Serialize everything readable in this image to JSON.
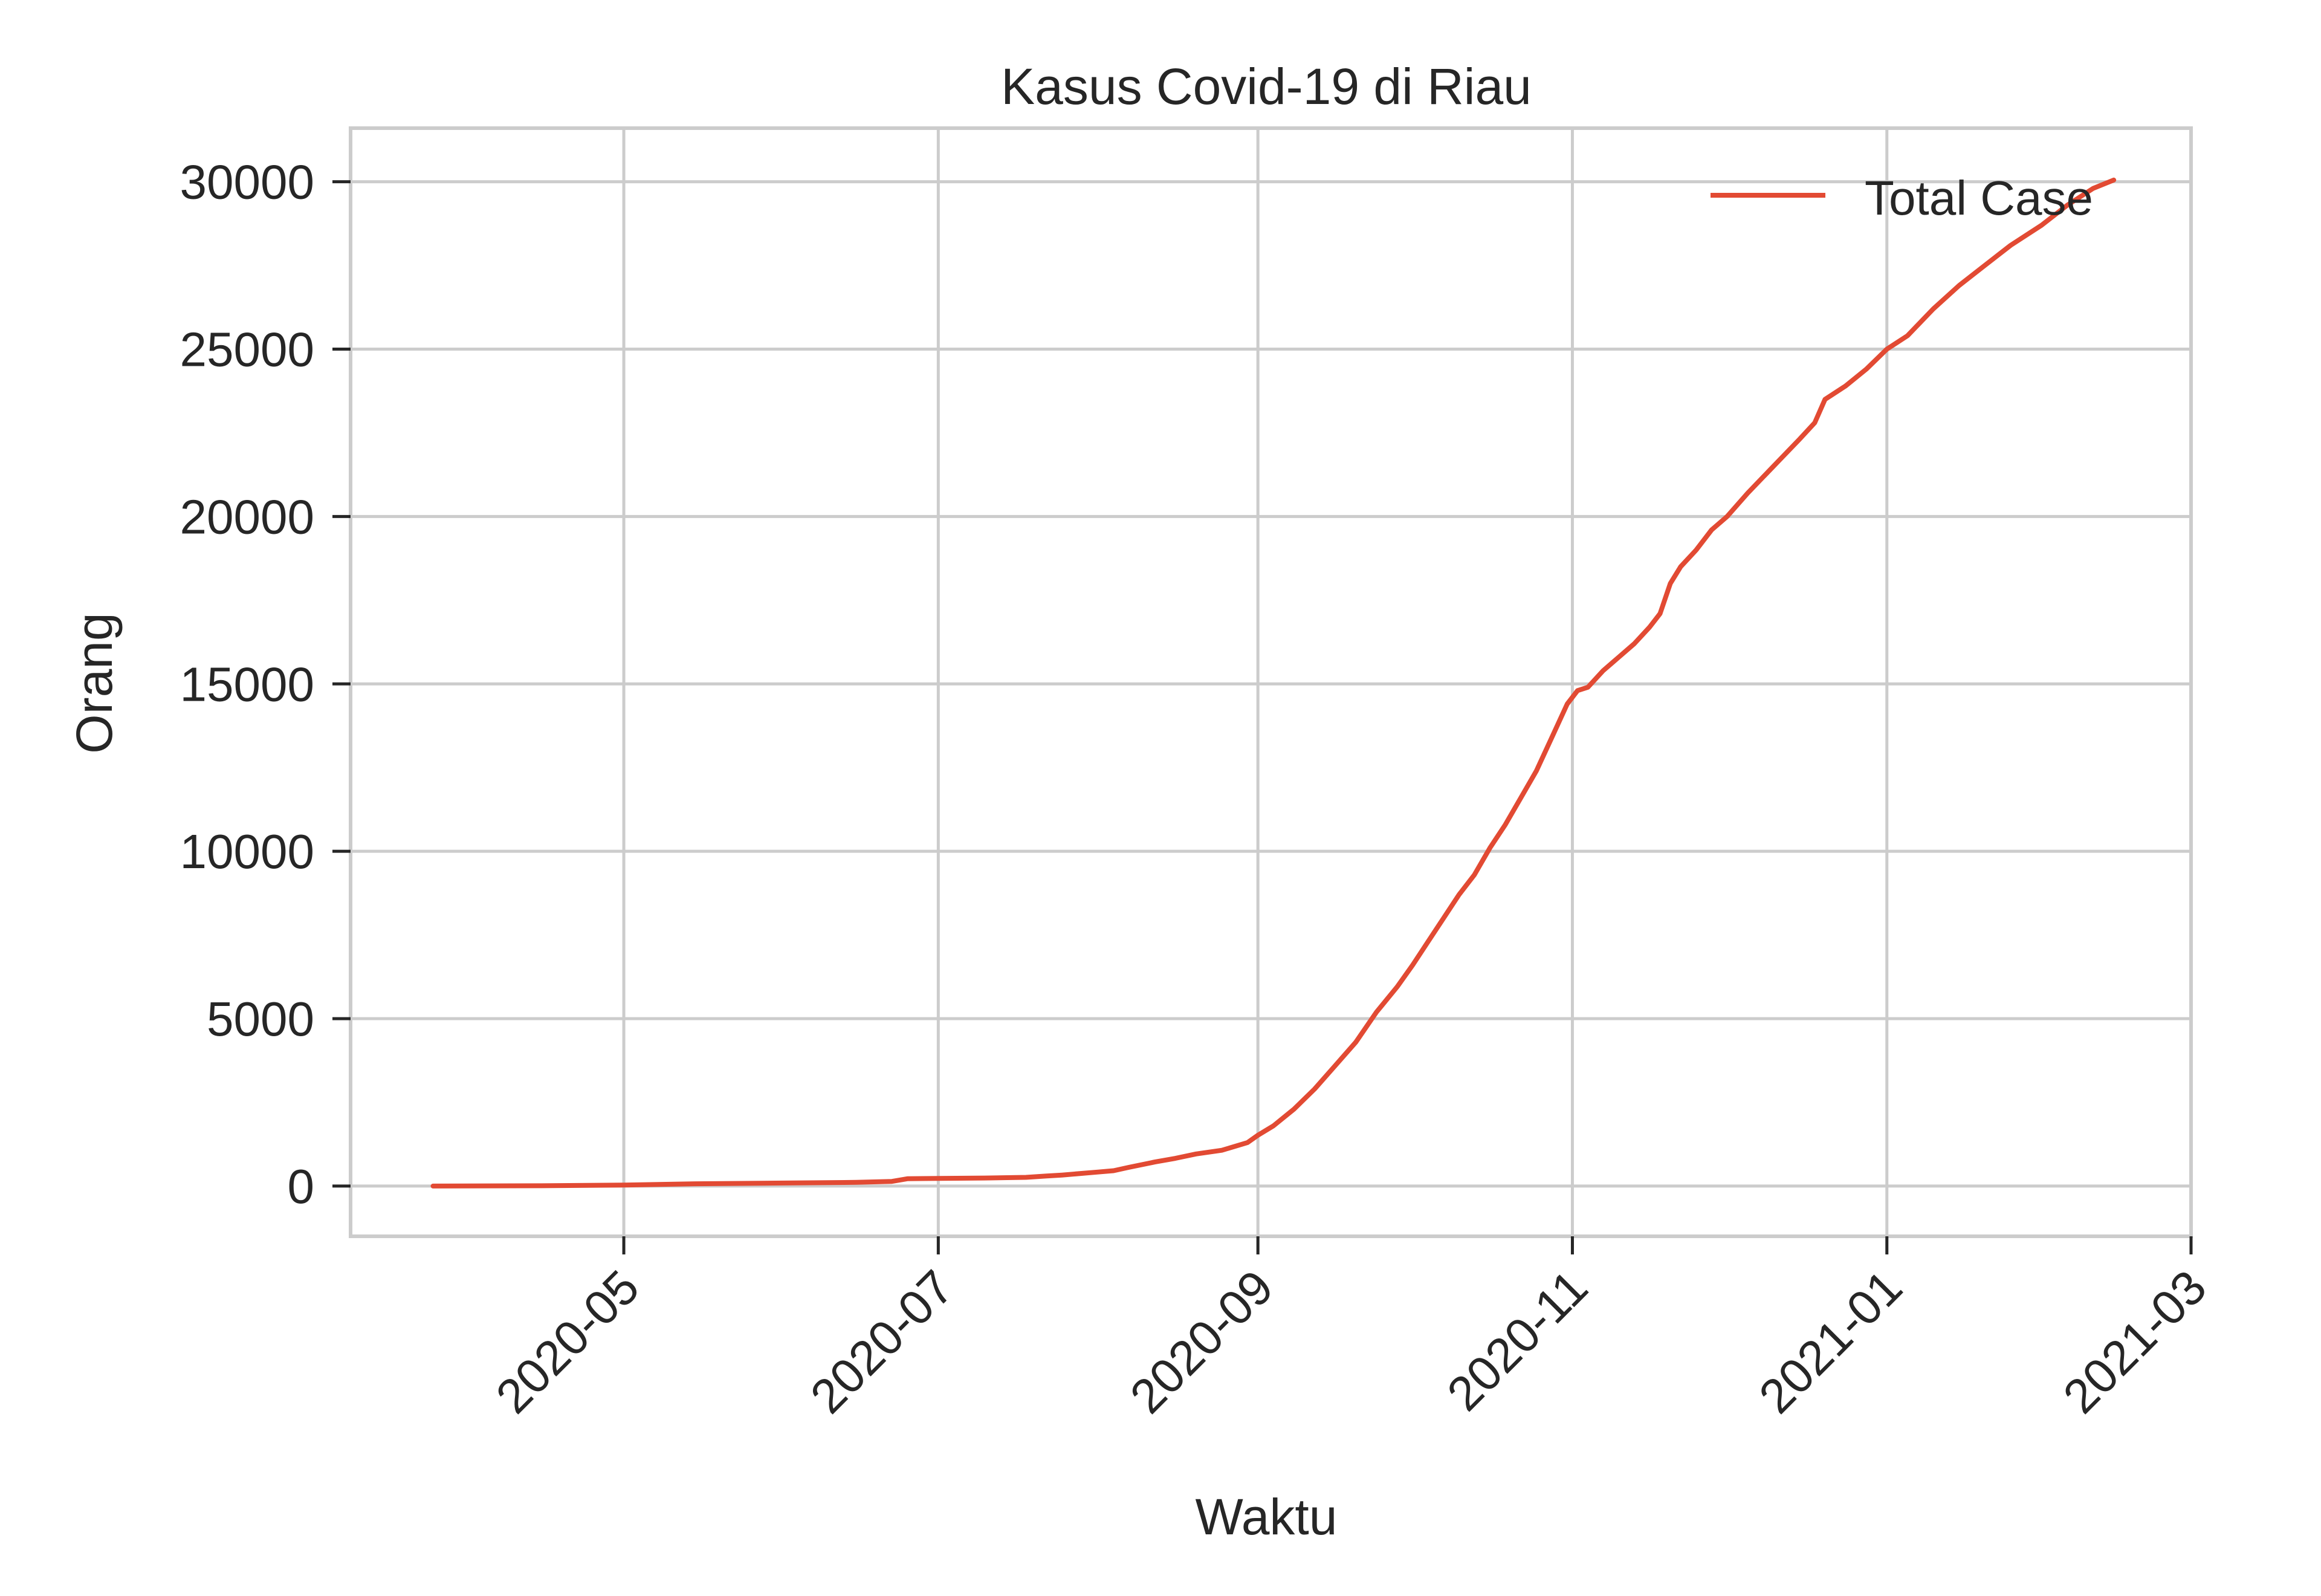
{
  "chart_data": {
    "type": "line",
    "title": "Kasus Covid-19 di Riau",
    "xlabel": "Waktu",
    "ylabel": "Orang",
    "x_axis_type": "date",
    "xlim": [
      "2020-03-09",
      "2021-03-01"
    ],
    "ylim": [
      -1500,
      31600
    ],
    "grid": true,
    "legend_position": "top-right",
    "x_ticks": [
      {
        "value": "2020-05-01",
        "label": "2020-05"
      },
      {
        "value": "2020-07-01",
        "label": "2020-07"
      },
      {
        "value": "2020-09-01",
        "label": "2020-09"
      },
      {
        "value": "2020-11-01",
        "label": "2020-11"
      },
      {
        "value": "2021-01-01",
        "label": "2021-01"
      },
      {
        "value": "2021-03-01",
        "label": "2021-03"
      }
    ],
    "y_ticks": [
      {
        "value": 0,
        "label": "0"
      },
      {
        "value": 5000,
        "label": "5000"
      },
      {
        "value": 10000,
        "label": "10000"
      },
      {
        "value": 15000,
        "label": "15000"
      },
      {
        "value": 20000,
        "label": "20000"
      },
      {
        "value": 25000,
        "label": "25000"
      },
      {
        "value": 30000,
        "label": "30000"
      }
    ],
    "series": [
      {
        "name": "Total Case",
        "color": "#e24a33",
        "points": [
          [
            "2020-03-25",
            0
          ],
          [
            "2020-04-15",
            10
          ],
          [
            "2020-05-01",
            30
          ],
          [
            "2020-05-15",
            70
          ],
          [
            "2020-06-01",
            90
          ],
          [
            "2020-06-15",
            110
          ],
          [
            "2020-06-22",
            140
          ],
          [
            "2020-06-25",
            220
          ],
          [
            "2020-07-01",
            230
          ],
          [
            "2020-07-10",
            240
          ],
          [
            "2020-07-18",
            260
          ],
          [
            "2020-07-22",
            300
          ],
          [
            "2020-07-25",
            330
          ],
          [
            "2020-08-01",
            420
          ],
          [
            "2020-08-04",
            460
          ],
          [
            "2020-08-07",
            560
          ],
          [
            "2020-08-12",
            720
          ],
          [
            "2020-08-16",
            830
          ],
          [
            "2020-08-20",
            960
          ],
          [
            "2020-08-25",
            1070
          ],
          [
            "2020-08-30",
            1300
          ],
          [
            "2020-09-01",
            1520
          ],
          [
            "2020-09-04",
            1800
          ],
          [
            "2020-09-08",
            2300
          ],
          [
            "2020-09-12",
            2900
          ],
          [
            "2020-09-16",
            3600
          ],
          [
            "2020-09-20",
            4300
          ],
          [
            "2020-09-24",
            5200
          ],
          [
            "2020-09-28",
            5950
          ],
          [
            "2020-10-01",
            6600
          ],
          [
            "2020-10-04",
            7300
          ],
          [
            "2020-10-07",
            8000
          ],
          [
            "2020-10-10",
            8700
          ],
          [
            "2020-10-13",
            9300
          ],
          [
            "2020-10-16",
            10100
          ],
          [
            "2020-10-19",
            10800
          ],
          [
            "2020-10-22",
            11600
          ],
          [
            "2020-10-25",
            12400
          ],
          [
            "2020-10-28",
            13400
          ],
          [
            "2020-10-31",
            14400
          ],
          [
            "2020-11-02",
            14800
          ],
          [
            "2020-11-04",
            14900
          ],
          [
            "2020-11-07",
            15400
          ],
          [
            "2020-11-10",
            15800
          ],
          [
            "2020-11-13",
            16200
          ],
          [
            "2020-11-16",
            16700
          ],
          [
            "2020-11-18",
            17100
          ],
          [
            "2020-11-20",
            18000
          ],
          [
            "2020-11-22",
            18500
          ],
          [
            "2020-11-25",
            19000
          ],
          [
            "2020-11-28",
            19600
          ],
          [
            "2020-12-01",
            20000
          ],
          [
            "2020-12-05",
            20700
          ],
          [
            "2020-12-10",
            21500
          ],
          [
            "2020-12-15",
            22300
          ],
          [
            "2020-12-18",
            22800
          ],
          [
            "2020-12-20",
            23500
          ],
          [
            "2020-12-24",
            23900
          ],
          [
            "2020-12-28",
            24400
          ],
          [
            "2021-01-01",
            25000
          ],
          [
            "2021-01-05",
            25400
          ],
          [
            "2021-01-10",
            26200
          ],
          [
            "2021-01-15",
            26900
          ],
          [
            "2021-01-20",
            27500
          ],
          [
            "2021-01-25",
            28100
          ],
          [
            "2021-01-31",
            28700
          ],
          [
            "2021-02-05",
            29300
          ],
          [
            "2021-02-10",
            29800
          ],
          [
            "2021-02-14",
            30050
          ]
        ]
      }
    ]
  }
}
